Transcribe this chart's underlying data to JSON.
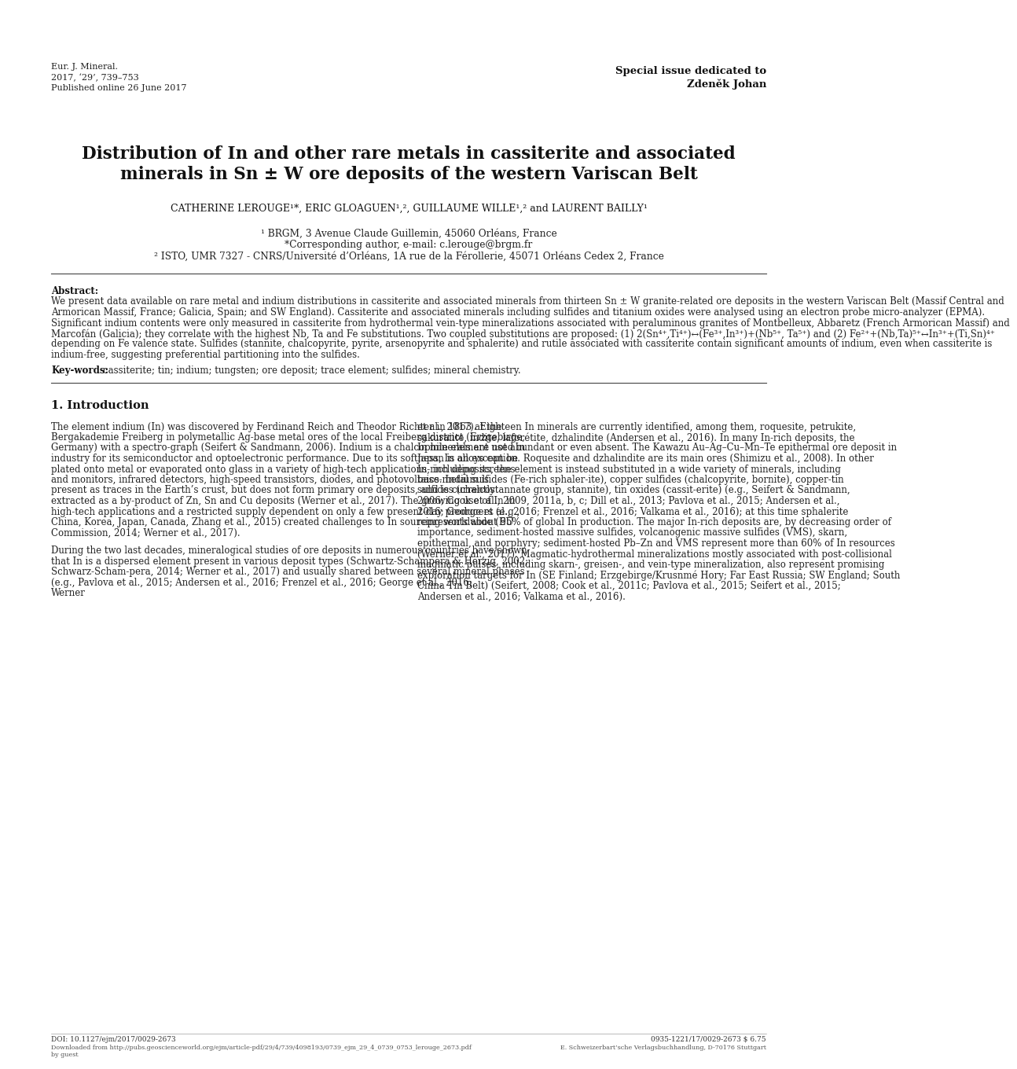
{
  "bg": "#ffffff",
  "header_left_lines": [
    "Eur. J. Mineral.",
    "2017, ‘29’, 739–753",
    "Published online 26 June 2017"
  ],
  "header_right_1": "Special issue dedicated to",
  "header_right_2": "Zdeněk Johan",
  "title_1": "Distribution of In and other rare metals in cassiterite and associated",
  "title_2": "minerals in Sn ± W ore deposits of the western Variscan Belt",
  "authors_line": "CATHERINE LEROUGE¹*, ERIC GLOAGUEN¹,², GUILLAUME WILLE¹,² and LAURENT BAILLY¹",
  "affil1": "¹ BRGM, 3 Avenue Claude Guillemin, 45060 Orléans, France",
  "affil2": "*Corresponding author, e-mail: c.lerouge@brgm.fr",
  "affil3": "² ISTO, UMR 7327 - CNRS/Université d’Orléans, 1A rue de la Férollerie, 45071 Orléans Cedex 2, France",
  "abstract_body": "We present data available on rare metal and indium distributions in cassiterite and associated minerals from thirteen Sn ± W granite-related ore deposits in the western Variscan Belt (Massif Central and Armorican Massif, France; Galicia, Spain; and SW England). Cassiterite and associated minerals including sulfides and titanium oxides were analysed using an electron probe micro-analyzer (EPMA). Significant indium contents were only measured in cassiterite from hydrothermal vein-type mineralizations associated with peraluminous granites of Montbelleux, Abbaretz (French Armorican Massif) and Marcofán (Galicia); they correlate with the highest Nb, Ta and Fe substitutions. Two coupled substitutions are proposed: (1) 2(Sn⁴⁺,Ti⁴⁺)↔(Fe³⁺,In³⁺)+(Nb⁵⁺, Ta⁵⁺) and (2) Fe²⁺+(Nb,Ta)⁵⁺↔In³⁺+(Ti,Sn)⁴⁺ depending on Fe valence state. Sulfides (stannite, chalcopyrite, pyrite, arsenopyrite and sphalerite) and rutile associated with cassiterite contain significant amounts of indium, even when cassiterite is indium-free, suggesting preferential partitioning into the sulfides.",
  "keywords_body": "cassiterite; tin; indium; tungsten; ore deposit; trace element; sulfides; mineral chemistry.",
  "sec1_title": "1. Introduction",
  "col1_p1": "The element indium (In) was discovered by Ferdinand Reich and Theodor Richter in 1863 at the Bergakademie Freiberg in polymetallic Ag-base metal ores of the local Freiberg district (Erzgebirge, Germany) with a spectro-graph (Seifert & Sandmann, 2006). Indium is a chalcophile element used in industry for its semiconductor and optoelectronic performance. Due to its softness, In alloys can be plated onto metal or evaporated onto glass in a variety of high-tech applications, including screens and monitors, infrared detectors, high-speed transistors, diodes, and photovoltaics. Indium is present as traces in the Earth’s crust, but does not form primary ore deposits, and is currently extracted as a by-product of Zn, Sn and Cu deposits (Werner et al., 2017). The growing use of In in high-tech applications and a restricted supply dependent on only a few present-day producers (e.g., China, Korea, Japan, Canada, Zhang et al., 2015) created challenges to In sourcing worldwide (EU Commission, 2014; Werner et al., 2017).",
  "col1_p2": "During the two last decades, mineralogical studies of ore deposits in numerous countries have shown that In is a dispersed element present in various deposit types (Schwartz-Schampera & Herzig, 2002; Schwarz-Scham-pera, 2014; Werner et al., 2017) and usually shared between several mineral phases (e.g., Pavlova et al., 2015; Andersen et al., 2016; Frenzel et al., 2016; George et al., 2016; Werner",
  "col2_p1": "et al., 2017). Eighteen In minerals are currently identified, among them, roquesite, petrukite, sakuraiite, indite, laforétite, dzhalindite (Andersen et al., 2016). In many In-rich deposits, the In minerals are not abundant or even absent. The Kawazu Au–Ag–Cu–Mn–Te epithermal ore deposit in Japan is an exception. Roquesite and dzhalindite are its main ores (Shimizu et al., 2008). In other In-rich deposits, the element is instead substituted in a wide variety of minerals, including base-metal sulfides (Fe-rich sphaler-ite), copper sulfides (chalcopyrite, bornite), copper-tin sulfides (chalcostannate group, stannite), tin oxides (cassit-erite) (e.g., Seifert & Sandmann, 2006; Cook et al., 2009, 2011a, b, c; Dill et al., 2013; Pavlova et al., 2015; Andersen et al., 2016; George et al., 2016; Frenzel et al., 2016; Valkama et al., 2016); at this time sphalerite represents about 95% of global In production. The major In-rich deposits are, by decreasing order of importance, sediment-hosted massive sulfides, volcanogenic massive sulfides (VMS), skarn, epithermal, and porphyry; sediment-hosted Pb–Zn and VMS represent more than 60% of In resources (Werner et al., 2017). Magmatic-hydrothermal mineralizations mostly associated with post-collisional magmatic pulses, including skarn-, greisen-, and vein-type mineralization, also represent promising exploration targets for In (SE Finland; Erzgebirge/Krusnmé Hory; Far East Russia; SW England; South China Tin Belt) (Seifert, 2008; Cook et al., 2011c; Pavlova et al., 2015; Seifert et al., 2015; Andersen et al., 2016; Valkama et al., 2016).",
  "footer_doi": "DOI: 10.1127/ejm/2017/0029-2673",
  "footer_issn": "0935-1221/17/0029-2673 $ 6.75",
  "footer_dl": "Downloaded from http://pubs.geoscienceworld.org/ejm/article-pdf/29/4/739/4098193/0739_ejm_29_4_0739_0753_lerouge_2673.pdf",
  "footer_dl2": "by guest",
  "footer_pub": "E. Schweizerbart’sche Verlagsbuchhandlung, D-70176 Stuttgart"
}
